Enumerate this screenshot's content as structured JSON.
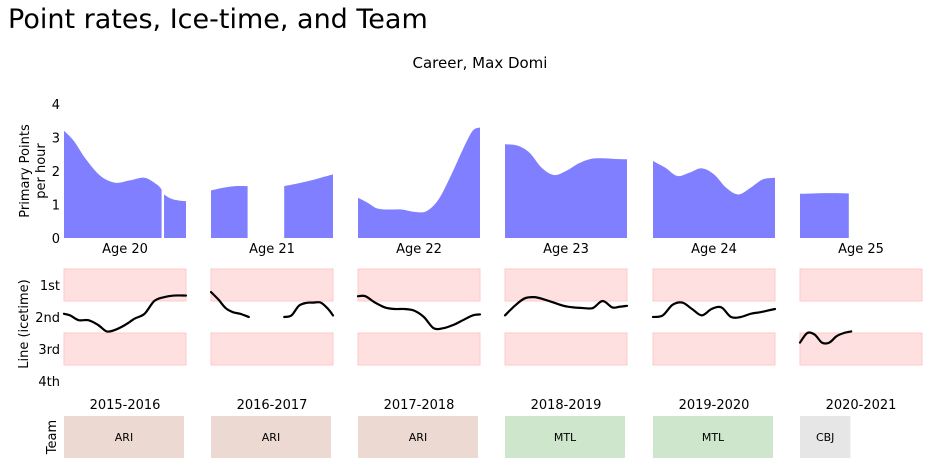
{
  "page_title": "Point rates, Ice-time, and Team",
  "colors": {
    "area": "#7f7fff",
    "band": "#ffe0e0",
    "band_edge": "#ffc8c8",
    "line": "#000000",
    "team_ARI": "#ecd9d2",
    "team_MTL": "#cde6cc",
    "team_CBJ": "#e6e6e6"
  },
  "chart_data": [
    {
      "type": "area",
      "title": "Career, Max Domi",
      "ylabel": "Primary Points per hour",
      "ylabel_lines": [
        "Primary Points",
        "per hour"
      ],
      "ylim": [
        0,
        4
      ],
      "yticks": [
        0,
        1,
        2,
        3,
        4
      ],
      "xlim": [
        0,
        1
      ],
      "panels": [
        {
          "label": "Age 20",
          "segments": [
            {
              "x": [
                0,
                0.08,
                0.18,
                0.3,
                0.42,
                0.54,
                0.66,
                0.76,
                0.8
              ],
              "y": [
                3.2,
                2.9,
                2.35,
                1.85,
                1.65,
                1.72,
                1.8,
                1.6,
                1.45
              ]
            },
            {
              "x": [
                0.82,
                0.88,
                0.94,
                1.0
              ],
              "y": [
                1.3,
                1.17,
                1.12,
                1.1
              ]
            }
          ]
        },
        {
          "label": "Age 21",
          "segments": [
            {
              "x": [
                0,
                0.1,
                0.2,
                0.3
              ],
              "y": [
                1.42,
                1.5,
                1.55,
                1.55
              ]
            },
            {
              "x": [
                0.6,
                0.7,
                0.8,
                0.9,
                1.0
              ],
              "y": [
                1.55,
                1.62,
                1.7,
                1.8,
                1.9
              ]
            }
          ]
        },
        {
          "label": "Age 22",
          "segments": [
            {
              "x": [
                0,
                0.08,
                0.16,
                0.26,
                0.36,
                0.46,
                0.56,
                0.66,
                0.76,
                0.86,
                0.94,
                1.0
              ],
              "y": [
                1.2,
                1.05,
                0.88,
                0.85,
                0.85,
                0.78,
                0.8,
                1.15,
                1.85,
                2.65,
                3.2,
                3.3
              ]
            }
          ]
        },
        {
          "label": "Age 23",
          "segments": [
            {
              "x": [
                0,
                0.1,
                0.2,
                0.3,
                0.4,
                0.5,
                0.6,
                0.7,
                0.8,
                0.9,
                1.0
              ],
              "y": [
                2.8,
                2.76,
                2.55,
                2.1,
                1.88,
                2.0,
                2.22,
                2.36,
                2.38,
                2.36,
                2.35
              ]
            }
          ]
        },
        {
          "label": "Age 24",
          "segments": [
            {
              "x": [
                0,
                0.1,
                0.2,
                0.3,
                0.4,
                0.5,
                0.6,
                0.7,
                0.8,
                0.9,
                1.0
              ],
              "y": [
                2.3,
                2.1,
                1.85,
                1.95,
                2.08,
                1.9,
                1.5,
                1.3,
                1.5,
                1.75,
                1.8
              ]
            }
          ]
        },
        {
          "label": "Age 25",
          "segments": [
            {
              "x": [
                0,
                0.1,
                0.2,
                0.3,
                0.4
              ],
              "y": [
                1.32,
                1.33,
                1.34,
                1.34,
                1.33
              ]
            }
          ]
        }
      ]
    },
    {
      "type": "line",
      "ylabel": "Line (icetime)",
      "ylim": [
        1,
        4
      ],
      "yticks": [
        "1st",
        "2nd",
        "3rd",
        "4th"
      ],
      "bands": [
        [
          0.5,
          1.5
        ],
        [
          2.5,
          3.5
        ]
      ],
      "panels": [
        {
          "label": "2015-2016",
          "segments": [
            {
              "x": [
                0,
                0.05,
                0.12,
                0.2,
                0.28,
                0.35,
                0.42,
                0.5,
                0.58,
                0.66,
                0.74,
                0.82,
                0.9,
                1.0
              ],
              "y": [
                1.9,
                1.95,
                2.1,
                2.1,
                2.25,
                2.45,
                2.4,
                2.25,
                2.05,
                1.9,
                1.5,
                1.38,
                1.33,
                1.33
              ]
            }
          ]
        },
        {
          "label": "2016-2017",
          "segments": [
            {
              "x": [
                0,
                0.06,
                0.12,
                0.18,
                0.24,
                0.31
              ],
              "y": [
                1.22,
                1.45,
                1.72,
                1.85,
                1.9,
                2.0
              ]
            },
            {
              "x": [
                0.6,
                0.66,
                0.72,
                0.78,
                0.84,
                0.9,
                0.96,
                1.0
              ],
              "y": [
                2.0,
                1.95,
                1.65,
                1.56,
                1.55,
                1.55,
                1.75,
                1.95
              ]
            }
          ]
        },
        {
          "label": "2017-2018",
          "segments": [
            {
              "x": [
                0,
                0.06,
                0.14,
                0.22,
                0.3,
                0.38,
                0.46,
                0.54,
                0.62,
                0.7,
                0.78,
                0.86,
                0.94,
                1.0
              ],
              "y": [
                1.35,
                1.35,
                1.55,
                1.7,
                1.75,
                1.75,
                1.8,
                2.0,
                2.35,
                2.35,
                2.25,
                2.1,
                1.95,
                1.92
              ]
            }
          ]
        },
        {
          "label": "2018-2019",
          "segments": [
            {
              "x": [
                0,
                0.08,
                0.16,
                0.24,
                0.32,
                0.4,
                0.48,
                0.56,
                0.64,
                0.72,
                0.8,
                0.88,
                0.94,
                1.0
              ],
              "y": [
                1.95,
                1.65,
                1.42,
                1.38,
                1.45,
                1.55,
                1.65,
                1.7,
                1.72,
                1.72,
                1.5,
                1.7,
                1.68,
                1.65
              ]
            }
          ]
        },
        {
          "label": "2019-2020",
          "segments": [
            {
              "x": [
                0,
                0.08,
                0.16,
                0.24,
                0.32,
                0.4,
                0.48,
                0.56,
                0.64,
                0.72,
                0.8,
                0.88,
                0.94,
                1.0
              ],
              "y": [
                2.0,
                1.95,
                1.62,
                1.55,
                1.75,
                1.95,
                1.75,
                1.7,
                2.0,
                2.0,
                1.9,
                1.85,
                1.8,
                1.75
              ]
            }
          ]
        },
        {
          "label": "2020-2021",
          "segments": [
            {
              "x": [
                0,
                0.06,
                0.12,
                0.18,
                0.24,
                0.3,
                0.36,
                0.42
              ],
              "y": [
                2.8,
                2.5,
                2.55,
                2.8,
                2.8,
                2.6,
                2.5,
                2.45
              ]
            }
          ]
        }
      ]
    },
    {
      "type": "table",
      "ylabel": "Team",
      "panels": [
        {
          "label": "2015-2016",
          "team": "ARI",
          "color_key": "team_ARI",
          "extent": 1.0
        },
        {
          "label": "2016-2017",
          "team": "ARI",
          "color_key": "team_ARI",
          "extent": 1.0
        },
        {
          "label": "2017-2018",
          "team": "ARI",
          "color_key": "team_ARI",
          "extent": 1.0
        },
        {
          "label": "2018-2019",
          "team": "MTL",
          "color_key": "team_MTL",
          "extent": 1.0
        },
        {
          "label": "2019-2020",
          "team": "MTL",
          "color_key": "team_MTL",
          "extent": 1.0
        },
        {
          "label": "2020-2021",
          "team": "CBJ",
          "color_key": "team_CBJ",
          "extent": 0.42
        }
      ]
    }
  ]
}
